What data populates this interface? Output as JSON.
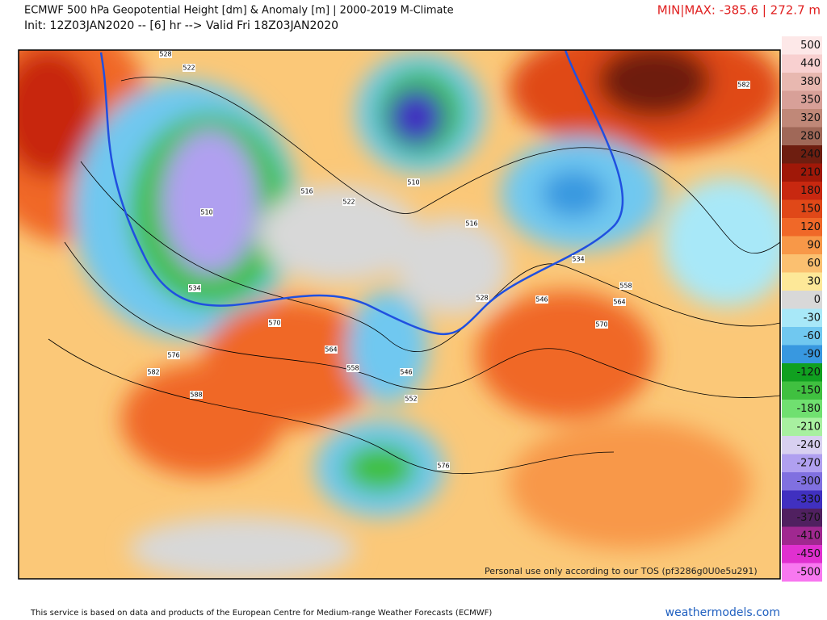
{
  "header": {
    "title": "ECMWF 500 hPa Geopotential Height [dm] & Anomaly [m] | 2000-2019 M-Climate",
    "subtitle": "Init: 12Z03JAN2020 -- [6] hr --> Valid Fri 18Z03JAN2020",
    "minmax": "MIN|MAX: -385.6 | 272.7 m"
  },
  "colorbar": {
    "labels": [
      500,
      440,
      380,
      350,
      320,
      280,
      240,
      210,
      180,
      150,
      120,
      90,
      60,
      30,
      0,
      -30,
      -60,
      -90,
      -120,
      -150,
      -180,
      -210,
      -240,
      -270,
      -300,
      -330,
      -370,
      -410,
      -450,
      -500
    ],
    "colors": [
      "#fde8e8",
      "#f8d0d0",
      "#e8b8b0",
      "#d8a098",
      "#c08878",
      "#a06858",
      "#6e1e10",
      "#a01808",
      "#c82810",
      "#e04818",
      "#f06828",
      "#f89848",
      "#fbc070",
      "#fde898",
      "#d8d8d8",
      "#a8e8f8",
      "#70c8f0",
      "#3898e0",
      "#10a020",
      "#40c040",
      "#70e070",
      "#a8f0a0",
      "#d8d0f0",
      "#b0a0f0",
      "#8070e0",
      "#4030c0",
      "#502060",
      "#a02890",
      "#e030d0",
      "#f878f0"
    ]
  },
  "contour_labels": [
    "528",
    "522",
    "516",
    "510",
    "534",
    "522",
    "516",
    "510",
    "528",
    "534",
    "546",
    "558",
    "564",
    "570",
    "570",
    "564",
    "558",
    "576",
    "582",
    "588",
    "546",
    "552",
    "576",
    "582"
  ],
  "watermark": "Personal use only according to our TOS (pf3286g0U0e5u291)",
  "footer": {
    "credit": "This service is based on data and products of the European Centre for Medium-range Weather Forecasts (ECMWF)",
    "site": "weathermodels.com"
  }
}
